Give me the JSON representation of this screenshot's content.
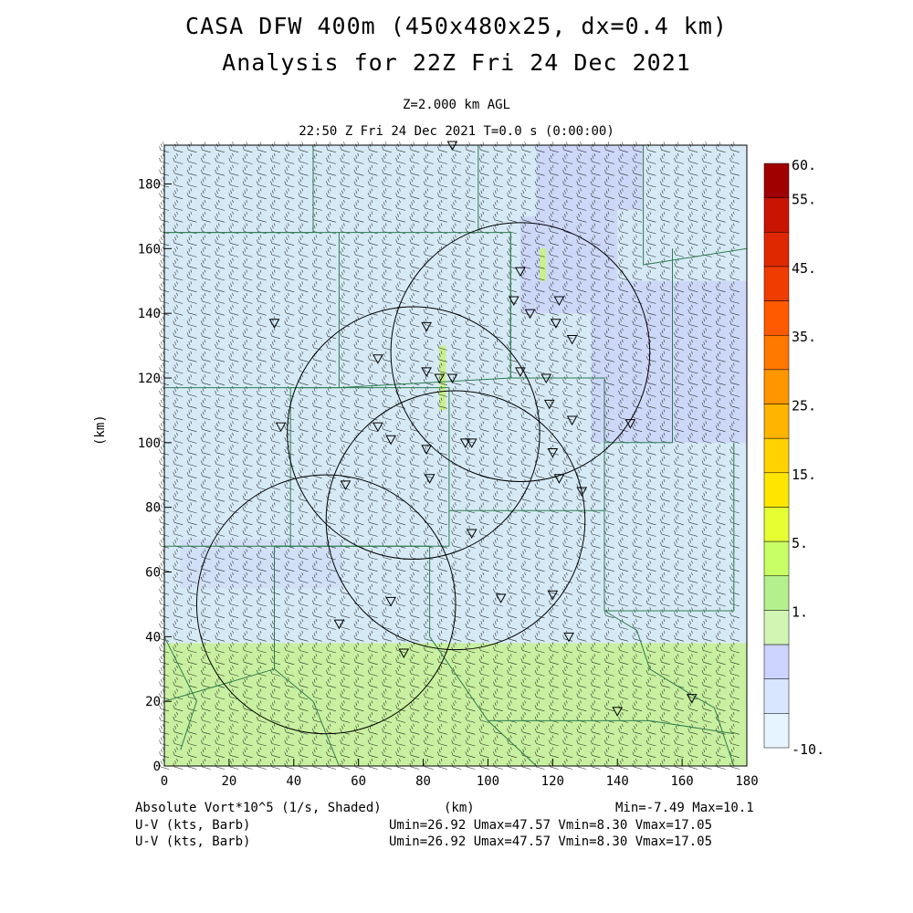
{
  "title": {
    "line1": "CASA DFW 400m (450x480x25, dx=0.4 km)",
    "line2": "Analysis for 22Z Fri 24 Dec 2021"
  },
  "subtitle": {
    "level": "Z=2.000 km AGL",
    "time": "22:50 Z Fri 24 Dec 2021    T=0.0 s (0:00:00)"
  },
  "axes": {
    "x_ticks": [
      "0",
      "20",
      "40",
      "60",
      "80",
      "100",
      "120",
      "140",
      "160",
      "180"
    ],
    "y_ticks": [
      "0",
      "20",
      "40",
      "60",
      "80",
      "100",
      "120",
      "140",
      "160",
      "180"
    ],
    "x_unit": "(km)",
    "y_unit": "(km)",
    "x_range_km": [
      0,
      180
    ],
    "y_range_km": [
      0,
      192
    ]
  },
  "colorbar": {
    "labels": [
      "60.",
      "55.",
      "45.",
      "35.",
      "25.",
      "15.",
      "5.",
      "1.",
      "-10."
    ],
    "colors": [
      "#a00000",
      "#c81400",
      "#e02800",
      "#f03c00",
      "#ff5a00",
      "#ff7800",
      "#ff9600",
      "#ffb400",
      "#ffd200",
      "#ffe600",
      "#e6ff32",
      "#c8ff64",
      "#b4f08c",
      "#d2f5b4",
      "#ccd4ff",
      "#d8e6ff",
      "#e6f4ff"
    ]
  },
  "field": {
    "name": "Absolute Vort*10^5 (1/s, Shaded)",
    "min": "Min=-7.49",
    "max": "Max=10.1",
    "band_colors": {
      "lower": "#c8f0a0",
      "middle": "#d6eaf6",
      "upper": "#cdd8f8"
    }
  },
  "footer": {
    "line1_left": "Absolute Vort*10^5 (1/s, Shaded)",
    "line1_mid": "(km)",
    "line1_right": "Min=-7.49 Max=10.1",
    "line2_left": "U-V (kts, Barb)",
    "line2_right": "Umin=26.92 Umax=47.57 Vmin=8.30 Vmax=17.05",
    "line3_left": "U-V (kts, Barb)",
    "line3_right": "Umin=26.92 Umax=47.57 Vmin=8.30 Vmax=17.05"
  },
  "radars": [
    {
      "name": "radar-ring-northeast",
      "center_km": [
        110,
        128
      ],
      "radius_km": 40
    },
    {
      "name": "radar-ring-central",
      "center_km": [
        77,
        103
      ],
      "radius_km": 39
    },
    {
      "name": "radar-ring-east",
      "center_km": [
        90,
        76
      ],
      "radius_km": 40
    },
    {
      "name": "radar-ring-southwest",
      "center_km": [
        50,
        50
      ],
      "radius_km": 40
    }
  ],
  "stations_km": [
    [
      89,
      192
    ],
    [
      110,
      153
    ],
    [
      108,
      144
    ],
    [
      122,
      144
    ],
    [
      113,
      140
    ],
    [
      34,
      137
    ],
    [
      121,
      137
    ],
    [
      81,
      136
    ],
    [
      126,
      132
    ],
    [
      66,
      126
    ],
    [
      110,
      122
    ],
    [
      81,
      122
    ],
    [
      85,
      120
    ],
    [
      89,
      120
    ],
    [
      118,
      120
    ],
    [
      119,
      112
    ],
    [
      36,
      105
    ],
    [
      66,
      105
    ],
    [
      126,
      107
    ],
    [
      144,
      106
    ],
    [
      70,
      101
    ],
    [
      81,
      98
    ],
    [
      93,
      100
    ],
    [
      95,
      100
    ],
    [
      120,
      97
    ],
    [
      82,
      89
    ],
    [
      122,
      89
    ],
    [
      129,
      85
    ],
    [
      56,
      87
    ],
    [
      95,
      72
    ],
    [
      70,
      51
    ],
    [
      104,
      52
    ],
    [
      120,
      53
    ],
    [
      54,
      44
    ],
    [
      125,
      40
    ],
    [
      74,
      35
    ],
    [
      140,
      17
    ],
    [
      163,
      21
    ]
  ]
}
